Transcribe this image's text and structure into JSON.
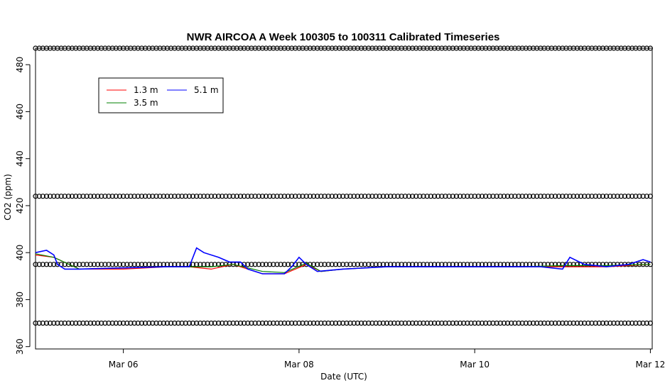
{
  "chart_data": {
    "type": "line",
    "title": "NWR AIRCOA A  Week 100305 to 100311  Calibrated Timeseries",
    "xlabel": "Date (UTC)",
    "ylabel": "CO2 (ppm)",
    "xlim": [
      "2010-03-05T00:00",
      "2010-03-12T00:30"
    ],
    "ylim": [
      359,
      487
    ],
    "x_ticks": [
      {
        "date": "2010-03-06",
        "label": "Mar 06"
      },
      {
        "date": "2010-03-08",
        "label": "Mar 08"
      },
      {
        "date": "2010-03-10",
        "label": "Mar 10"
      },
      {
        "date": "2010-03-12",
        "label": "Mar 12"
      }
    ],
    "y_ticks": [
      360,
      380,
      400,
      420,
      440,
      460,
      480
    ],
    "grid": false,
    "legend_position": "top-left",
    "series": [
      {
        "name": "1.3 m",
        "color": "#ff0000",
        "x": [
          "2010-03-05T00:00",
          "2010-03-05T05:00",
          "2010-03-05T12:00",
          "2010-03-06T00:00",
          "2010-03-06T12:00",
          "2010-03-06T18:00",
          "2010-03-07T00:00",
          "2010-03-07T06:00",
          "2010-03-07T10:00",
          "2010-03-07T14:00",
          "2010-03-07T20:00",
          "2010-03-08T02:00",
          "2010-03-08T06:00",
          "2010-03-08T12:00",
          "2010-03-09T00:00",
          "2010-03-09T12:00",
          "2010-03-10T00:00",
          "2010-03-10T12:00",
          "2010-03-11T00:00",
          "2010-03-11T12:00",
          "2010-03-12T00:00"
        ],
        "values": [
          399,
          398,
          393,
          393,
          394,
          394,
          393,
          395,
          393,
          391,
          391,
          395,
          392,
          393,
          394,
          394,
          394,
          394,
          394,
          394,
          395
        ]
      },
      {
        "name": "3.5 m",
        "color": "#008000",
        "x": [
          "2010-03-05T00:00",
          "2010-03-05T05:00",
          "2010-03-05T12:00",
          "2010-03-06T00:00",
          "2010-03-06T12:00",
          "2010-03-06T18:00",
          "2010-03-07T00:00",
          "2010-03-07T06:00",
          "2010-03-07T10:00",
          "2010-03-07T14:00",
          "2010-03-07T20:00",
          "2010-03-08T02:00",
          "2010-03-08T06:00",
          "2010-03-08T12:00",
          "2010-03-09T00:00",
          "2010-03-09T12:00",
          "2010-03-10T00:00",
          "2010-03-10T12:00",
          "2010-03-11T00:00",
          "2010-03-11T12:00",
          "2010-03-12T00:00"
        ],
        "values": [
          399.5,
          398,
          393,
          393.5,
          394,
          394,
          394,
          395,
          393.5,
          392,
          391.5,
          395.5,
          392,
          393,
          394,
          394,
          394,
          394,
          394.5,
          394.5,
          395
        ]
      },
      {
        "name": "5.1 m",
        "color": "#0000ff",
        "x": [
          "2010-03-05T00:00",
          "2010-03-05T03:00",
          "2010-03-05T05:00",
          "2010-03-05T06:00",
          "2010-03-05T08:00",
          "2010-03-05T12:00",
          "2010-03-06T00:00",
          "2010-03-06T12:00",
          "2010-03-06T18:00",
          "2010-03-06T20:00",
          "2010-03-06T22:00",
          "2010-03-07T02:00",
          "2010-03-07T05:00",
          "2010-03-07T08:00",
          "2010-03-07T10:00",
          "2010-03-07T14:00",
          "2010-03-07T20:00",
          "2010-03-07T22:00",
          "2010-03-08T00:00",
          "2010-03-08T02:00",
          "2010-03-08T05:00",
          "2010-03-08T12:00",
          "2010-03-09T00:00",
          "2010-03-09T12:00",
          "2010-03-10T00:00",
          "2010-03-10T12:00",
          "2010-03-10T18:00",
          "2010-03-11T00:00",
          "2010-03-11T02:00",
          "2010-03-11T06:00",
          "2010-03-11T12:00",
          "2010-03-11T18:00",
          "2010-03-11T22:00",
          "2010-03-12T00:00"
        ],
        "values": [
          400,
          401,
          399,
          395,
          393,
          393,
          393.5,
          394,
          394,
          402,
          400,
          398,
          396,
          396,
          393,
          391,
          391,
          394,
          398,
          395,
          392,
          393,
          394,
          394,
          394,
          394,
          394,
          393,
          398,
          395,
          394,
          395,
          397,
          396
        ]
      }
    ],
    "reference_markers": {
      "symbol": "open-circle",
      "color": "#000000",
      "levels": [
        370,
        395,
        424,
        487
      ],
      "x_start": "2010-03-05T00:00",
      "x_end": "2010-03-12T00:00",
      "interval_hours": 1
    }
  }
}
